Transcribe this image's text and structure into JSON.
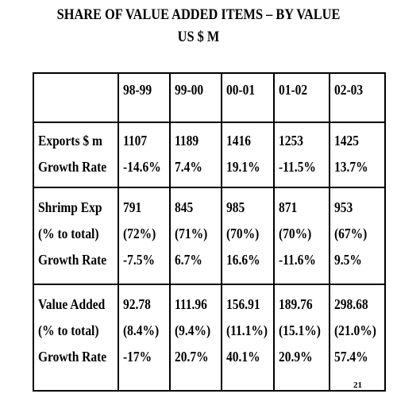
{
  "title_line1": "SHARE OF VALUE ADDED ITEMS – BY VALUE",
  "title_line2": "US $ M",
  "columns": [
    "98-99",
    "99-00",
    "00-01",
    "01-02",
    "02-03"
  ],
  "groups": [
    {
      "rows": [
        {
          "label": "Exports $ m",
          "values": [
            "1107",
            "1189",
            "1416",
            "1253",
            "1425"
          ]
        },
        {
          "label": "Growth Rate",
          "values": [
            "-14.6%",
            "7.4%",
            "19.1%",
            "-11.5%",
            "13.7%"
          ]
        }
      ]
    },
    {
      "rows": [
        {
          "label": "Shrimp Exp",
          "values": [
            "791",
            "845",
            "985",
            "871",
            "953"
          ]
        },
        {
          "label": "(% to total)",
          "values": [
            "(72%)",
            "(71%)",
            "(70%)",
            "(70%)",
            "(67%)"
          ]
        },
        {
          "label": "Growth Rate",
          "values": [
            "-7.5%",
            "6.7%",
            "16.6%",
            "-11.6%",
            "9.5%"
          ]
        }
      ]
    },
    {
      "rows": [
        {
          "label": "Value Added",
          "values": [
            "92.78",
            "111.96",
            "156.91",
            "189.76",
            "298.68"
          ]
        },
        {
          "label": "(% to total)",
          "values": [
            "(8.4%)",
            "(9.4%)",
            "(11.1%)",
            "(15.1%)",
            "(21.0%)"
          ]
        },
        {
          "label": "Growth Rate",
          "values": [
            "-17%",
            "20.7%",
            "40.1%",
            "20.9%",
            "57.4%"
          ]
        }
      ]
    }
  ],
  "page_number": "21"
}
